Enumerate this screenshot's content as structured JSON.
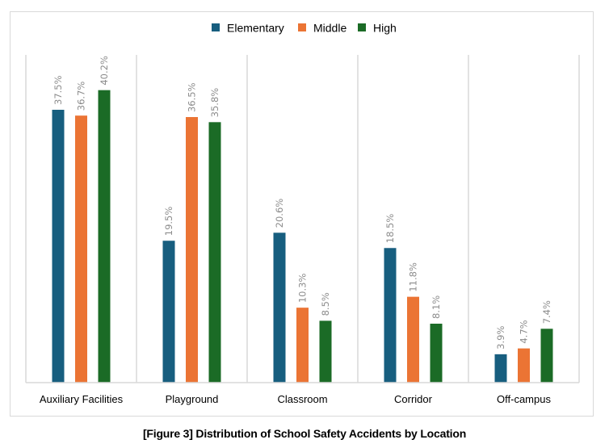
{
  "chart_data": {
    "type": "bar",
    "title": "",
    "caption": "[Figure 3] Distribution of School Safety Accidents by Location",
    "xlabel": "",
    "ylabel": "",
    "ylim": [
      0,
      45
    ],
    "grid": false,
    "legend_position": "top-center",
    "categories": [
      "Auxiliary  Facilities",
      "Playground",
      "Classroom",
      "Corridor",
      "Off-campus"
    ],
    "series": [
      {
        "name": "Elementary",
        "color": "#175E7F",
        "values": [
          37.5,
          19.5,
          20.6,
          18.5,
          3.9
        ],
        "labels": [
          "37.5%",
          "19.5%",
          "20.6%",
          "18.5%",
          "3.9%"
        ]
      },
      {
        "name": "Middle",
        "color": "#EB7434",
        "values": [
          36.7,
          36.5,
          10.3,
          11.8,
          4.7
        ],
        "labels": [
          "36.7%",
          "36.5%",
          "10.3%",
          "11.8%",
          "4.7%"
        ]
      },
      {
        "name": "High",
        "color": "#1B6B26",
        "values": [
          40.2,
          35.8,
          8.5,
          8.1,
          7.4
        ],
        "labels": [
          "40.2%",
          "35.8%",
          "8.5%",
          "8.1%",
          "7.4%"
        ]
      }
    ]
  }
}
